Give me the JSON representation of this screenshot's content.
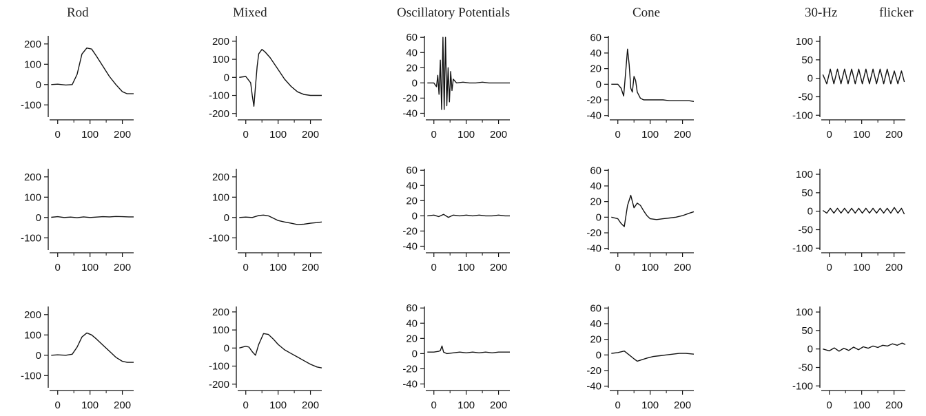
{
  "figure": {
    "column_titles": [
      "Rod",
      "Mixed",
      "Oscillatory Potentials",
      "Cone",
      "30-Hz",
      "flicker"
    ]
  },
  "chart_data": [
    {
      "type": "line",
      "row": 1,
      "column": "Rod",
      "xlim": [
        -25,
        235
      ],
      "ylim": [
        -160,
        240
      ],
      "xticks": [
        0,
        100,
        200
      ],
      "yticks": [
        -100,
        0,
        100,
        200
      ],
      "series": [
        {
          "x": [
            -20,
            0,
            25,
            45,
            60,
            75,
            90,
            105,
            120,
            140,
            160,
            180,
            200,
            215,
            235
          ],
          "y": [
            0,
            2,
            -2,
            0,
            50,
            150,
            180,
            175,
            140,
            90,
            40,
            0,
            -35,
            -45,
            -45
          ]
        }
      ]
    },
    {
      "type": "line",
      "row": 2,
      "column": "Rod",
      "xlim": [
        -25,
        235
      ],
      "ylim": [
        -160,
        240
      ],
      "xticks": [
        0,
        100,
        200
      ],
      "yticks": [
        -100,
        0,
        100,
        200
      ],
      "series": [
        {
          "x": [
            -20,
            0,
            20,
            40,
            60,
            80,
            100,
            120,
            140,
            160,
            180,
            200,
            220,
            235
          ],
          "y": [
            1,
            4,
            0,
            2,
            -1,
            3,
            0,
            2,
            4,
            3,
            5,
            4,
            3,
            3
          ]
        }
      ]
    },
    {
      "type": "line",
      "row": 3,
      "column": "Rod",
      "xlim": [
        -25,
        235
      ],
      "ylim": [
        -160,
        240
      ],
      "xticks": [
        0,
        100,
        200
      ],
      "yticks": [
        -100,
        0,
        100,
        200
      ],
      "series": [
        {
          "x": [
            -20,
            0,
            25,
            45,
            60,
            75,
            90,
            105,
            120,
            140,
            160,
            180,
            200,
            215,
            235
          ],
          "y": [
            0,
            2,
            0,
            5,
            40,
            90,
            110,
            100,
            80,
            50,
            20,
            -10,
            -30,
            -35,
            -35
          ]
        }
      ]
    },
    {
      "type": "line",
      "row": 1,
      "column": "Mixed",
      "xlim": [
        -25,
        235
      ],
      "ylim": [
        -220,
        230
      ],
      "xticks": [
        0,
        100,
        200
      ],
      "yticks": [
        -200,
        -100,
        0,
        100,
        200
      ],
      "series": [
        {
          "x": [
            -20,
            0,
            15,
            20,
            25,
            30,
            35,
            40,
            50,
            60,
            75,
            90,
            105,
            120,
            140,
            160,
            180,
            200,
            220,
            235
          ],
          "y": [
            0,
            5,
            -30,
            -100,
            -160,
            -50,
            60,
            130,
            155,
            140,
            110,
            70,
            30,
            -10,
            -50,
            -80,
            -95,
            -100,
            -100,
            -100
          ]
        }
      ]
    },
    {
      "type": "line",
      "row": 2,
      "column": "Mixed",
      "xlim": [
        -25,
        235
      ],
      "ylim": [
        -160,
        240
      ],
      "xticks": [
        0,
        100,
        200
      ],
      "yticks": [
        -100,
        0,
        100,
        200
      ],
      "series": [
        {
          "x": [
            -20,
            0,
            20,
            40,
            55,
            70,
            85,
            100,
            120,
            140,
            160,
            180,
            200,
            220,
            235
          ],
          "y": [
            0,
            2,
            0,
            10,
            12,
            8,
            -3,
            -15,
            -22,
            -28,
            -35,
            -33,
            -28,
            -25,
            -22
          ]
        }
      ]
    },
    {
      "type": "line",
      "row": 3,
      "column": "Mixed",
      "xlim": [
        -25,
        235
      ],
      "ylim": [
        -220,
        230
      ],
      "xticks": [
        0,
        100,
        200
      ],
      "yticks": [
        -200,
        -100,
        0,
        100,
        200
      ],
      "series": [
        {
          "x": [
            -20,
            0,
            10,
            20,
            30,
            40,
            55,
            70,
            85,
            100,
            120,
            140,
            160,
            180,
            200,
            220,
            235
          ],
          "y": [
            0,
            10,
            5,
            -20,
            -40,
            20,
            80,
            75,
            50,
            20,
            -10,
            -30,
            -50,
            -70,
            -90,
            -105,
            -110
          ]
        }
      ]
    },
    {
      "type": "line",
      "row": 1,
      "column": "Oscillatory Potentials",
      "xlim": [
        -25,
        235
      ],
      "ylim": [
        -45,
        62
      ],
      "xticks": [
        0,
        100,
        200
      ],
      "yticks": [
        -40,
        -20,
        0,
        20,
        40,
        60
      ],
      "series": [
        {
          "x": [
            -20,
            0,
            8,
            12,
            16,
            20,
            24,
            28,
            32,
            36,
            40,
            44,
            48,
            52,
            56,
            60,
            70,
            90,
            110,
            130,
            150,
            170,
            190,
            210,
            235
          ],
          "y": [
            0,
            0,
            -5,
            10,
            -15,
            30,
            -35,
            60,
            -35,
            60,
            -30,
            20,
            -25,
            15,
            -10,
            5,
            0,
            1,
            0,
            0,
            1,
            0,
            0,
            0,
            0
          ]
        }
      ]
    },
    {
      "type": "line",
      "row": 2,
      "column": "Oscillatory Potentials",
      "xlim": [
        -25,
        235
      ],
      "ylim": [
        -45,
        62
      ],
      "xticks": [
        0,
        100,
        200
      ],
      "yticks": [
        -40,
        -20,
        0,
        20,
        40,
        60
      ],
      "series": [
        {
          "x": [
            -20,
            0,
            15,
            30,
            45,
            60,
            80,
            100,
            120,
            140,
            160,
            180,
            200,
            220,
            235
          ],
          "y": [
            0,
            1,
            -1,
            2,
            -2,
            1,
            0,
            1,
            0,
            1,
            0,
            0,
            1,
            0,
            0
          ]
        }
      ]
    },
    {
      "type": "line",
      "row": 3,
      "column": "Oscillatory Potentials",
      "xlim": [
        -25,
        235
      ],
      "ylim": [
        -45,
        62
      ],
      "xticks": [
        0,
        100,
        200
      ],
      "yticks": [
        -40,
        -20,
        0,
        20,
        40,
        60
      ],
      "series": [
        {
          "x": [
            -20,
            0,
            15,
            20,
            25,
            30,
            40,
            60,
            80,
            100,
            120,
            140,
            160,
            180,
            200,
            220,
            235
          ],
          "y": [
            2,
            2,
            3,
            4,
            10,
            2,
            0,
            1,
            2,
            1,
            2,
            1,
            2,
            1,
            2,
            2,
            2
          ]
        }
      ]
    },
    {
      "type": "line",
      "row": 1,
      "column": "Cone",
      "xlim": [
        -25,
        235
      ],
      "ylim": [
        -42,
        62
      ],
      "xticks": [
        0,
        100,
        200
      ],
      "yticks": [
        -40,
        -20,
        0,
        20,
        40,
        60
      ],
      "series": [
        {
          "x": [
            -20,
            0,
            10,
            18,
            25,
            30,
            35,
            40,
            45,
            50,
            55,
            60,
            70,
            80,
            100,
            120,
            140,
            160,
            180,
            200,
            220,
            235
          ],
          "y": [
            0,
            0,
            -5,
            -15,
            20,
            45,
            25,
            -5,
            -10,
            10,
            5,
            -10,
            -18,
            -20,
            -20,
            -20,
            -20,
            -21,
            -21,
            -21,
            -21,
            -22
          ]
        }
      ]
    },
    {
      "type": "line",
      "row": 2,
      "column": "Cone",
      "xlim": [
        -25,
        235
      ],
      "ylim": [
        -42,
        62
      ],
      "xticks": [
        0,
        100,
        200
      ],
      "yticks": [
        -40,
        -20,
        0,
        20,
        40,
        60
      ],
      "series": [
        {
          "x": [
            -20,
            0,
            10,
            20,
            30,
            40,
            50,
            60,
            70,
            80,
            90,
            100,
            120,
            140,
            160,
            180,
            200,
            220,
            235
          ],
          "y": [
            0,
            -2,
            -8,
            -12,
            15,
            28,
            12,
            18,
            15,
            8,
            2,
            -2,
            -3,
            -2,
            -1,
            0,
            2,
            5,
            7
          ]
        }
      ]
    },
    {
      "type": "line",
      "row": 3,
      "column": "Cone",
      "xlim": [
        -25,
        235
      ],
      "ylim": [
        -42,
        62
      ],
      "xticks": [
        0,
        100,
        200
      ],
      "yticks": [
        -40,
        -20,
        0,
        20,
        40,
        60
      ],
      "series": [
        {
          "x": [
            -20,
            0,
            20,
            35,
            50,
            60,
            75,
            90,
            110,
            130,
            150,
            170,
            190,
            210,
            235
          ],
          "y": [
            2,
            3,
            5,
            0,
            -5,
            -8,
            -6,
            -4,
            -2,
            -1,
            0,
            1,
            2,
            2,
            1
          ]
        }
      ]
    },
    {
      "type": "line",
      "row": 1,
      "column": "30-Hz flicker",
      "xlim": [
        -25,
        235
      ],
      "ylim": [
        -105,
        115
      ],
      "xticks": [
        0,
        100,
        200
      ],
      "yticks": [
        -100,
        -50,
        0,
        50,
        100
      ],
      "series": [
        {
          "x": [
            -20,
            -8,
            3,
            14,
            25,
            36,
            47,
            58,
            69,
            80,
            91,
            102,
            113,
            124,
            135,
            146,
            157,
            168,
            179,
            190,
            201,
            212,
            223,
            232
          ],
          "y": [
            10,
            -15,
            25,
            -15,
            25,
            -15,
            25,
            -15,
            25,
            -15,
            25,
            -15,
            25,
            -15,
            25,
            -15,
            25,
            -15,
            25,
            -15,
            20,
            -15,
            20,
            -10
          ]
        }
      ]
    },
    {
      "type": "line",
      "row": 2,
      "column": "30-Hz flicker",
      "xlim": [
        -25,
        235
      ],
      "ylim": [
        -105,
        115
      ],
      "xticks": [
        0,
        100,
        200
      ],
      "yticks": [
        -100,
        -50,
        0,
        50,
        100
      ],
      "series": [
        {
          "x": [
            -20,
            -8,
            3,
            14,
            25,
            36,
            47,
            58,
            69,
            80,
            91,
            102,
            113,
            124,
            135,
            146,
            157,
            168,
            179,
            190,
            201,
            212,
            223,
            232
          ],
          "y": [
            2,
            -5,
            8,
            -5,
            8,
            -5,
            8,
            -5,
            8,
            -5,
            8,
            -5,
            8,
            -5,
            8,
            -5,
            8,
            -5,
            8,
            -5,
            10,
            -5,
            8,
            -8
          ]
        }
      ]
    },
    {
      "type": "line",
      "row": 3,
      "column": "30-Hz flicker",
      "xlim": [
        -25,
        235
      ],
      "ylim": [
        -105,
        115
      ],
      "xticks": [
        0,
        100,
        200
      ],
      "yticks": [
        -100,
        -50,
        0,
        50,
        100
      ],
      "series": [
        {
          "x": [
            -20,
            0,
            15,
            30,
            45,
            60,
            75,
            90,
            105,
            120,
            135,
            150,
            165,
            180,
            195,
            210,
            225,
            235
          ],
          "y": [
            0,
            -5,
            3,
            -6,
            2,
            -4,
            5,
            -2,
            6,
            2,
            8,
            4,
            10,
            8,
            14,
            10,
            16,
            12
          ]
        }
      ]
    }
  ]
}
